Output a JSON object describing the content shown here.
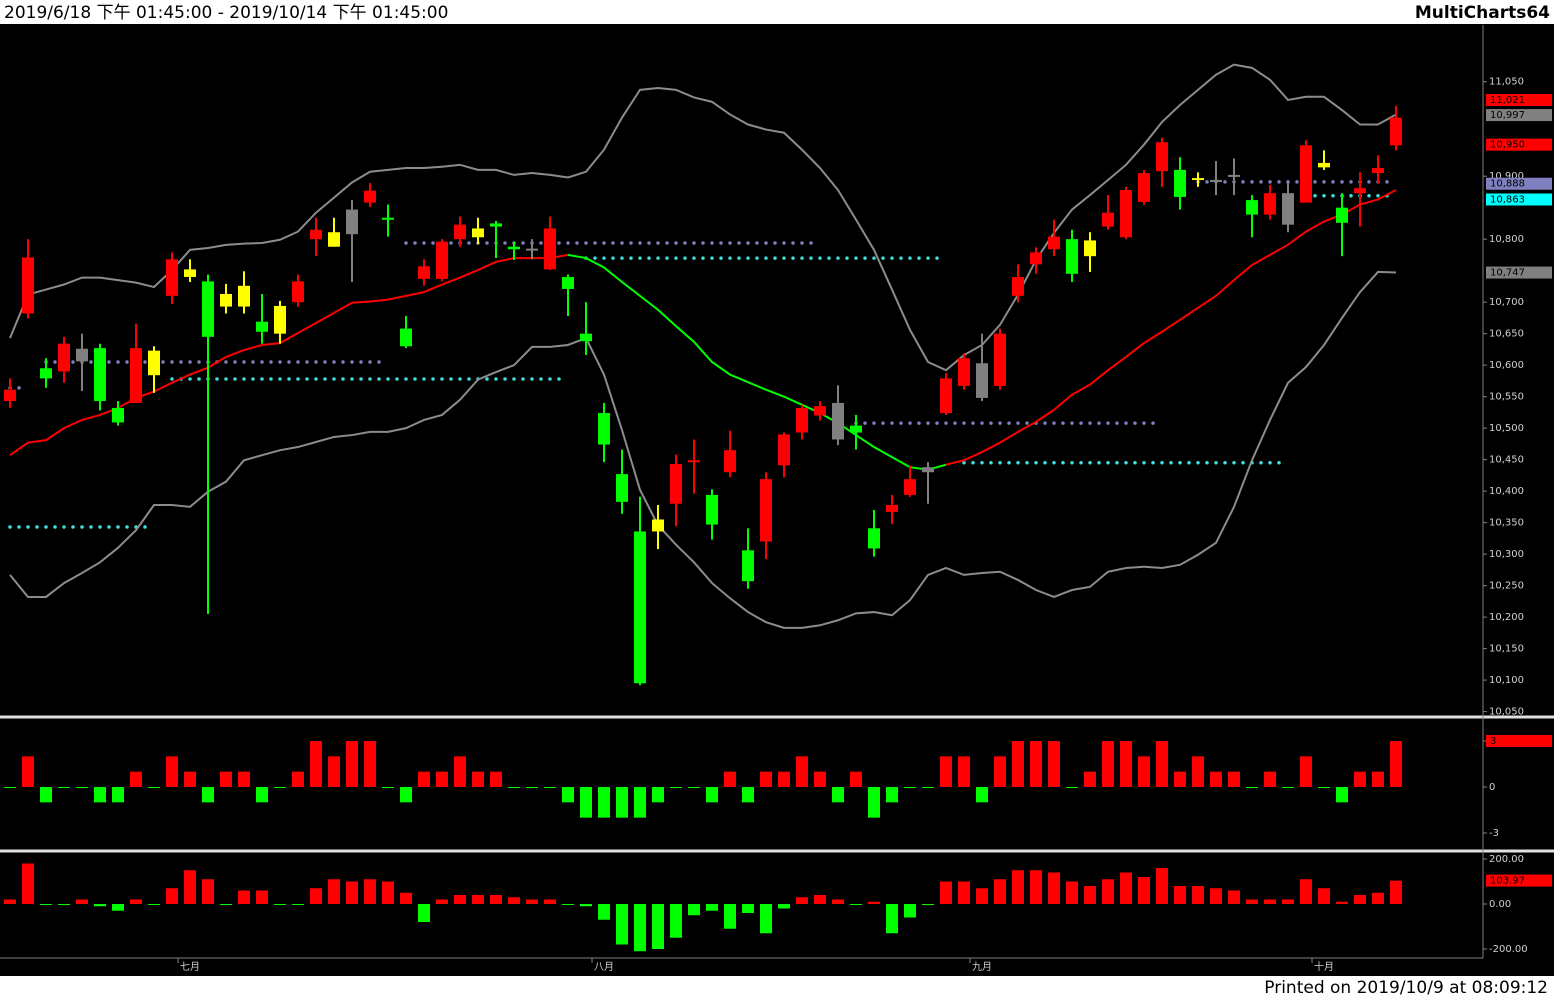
{
  "header": {
    "range": "2019/6/18 下午 01:45:00 - 2019/10/14 下午 01:45:00",
    "app": "MultiCharts64"
  },
  "footer": "Printed on 2019/10/9 at 08:09:12",
  "chart_data": [
    {
      "type": "candlestick",
      "categories": [
        null,
        null,
        null,
        null,
        null,
        null,
        null,
        null,
        null,
        null,
        "七月",
        null,
        null,
        null,
        null,
        null,
        null,
        null,
        null,
        null,
        null,
        null,
        null,
        null,
        null,
        null,
        null,
        null,
        null,
        null,
        null,
        null,
        null,
        "八月",
        null,
        null,
        null,
        null,
        null,
        null,
        null,
        null,
        null,
        null,
        null,
        null,
        null,
        null,
        null,
        null,
        null,
        null,
        null,
        null,
        "九月",
        null,
        null,
        null,
        null,
        null,
        null,
        null,
        null,
        null,
        null,
        null,
        null,
        null,
        null,
        null,
        null,
        null,
        null,
        "十月",
        null,
        null,
        null,
        null
      ],
      "open": [
        10543,
        10682,
        10595,
        10590,
        10606,
        10627,
        10532,
        10540,
        10584,
        10710,
        10740,
        10733,
        10693,
        10693,
        10669,
        10650,
        10700,
        10800,
        10788,
        10847,
        10858,
        10834,
        10658,
        10737,
        10737,
        10800,
        10803,
        10825,
        10788,
        10785,
        10752,
        10740,
        10650,
        10524,
        10427,
        10336,
        10336,
        10380,
        10446,
        10394,
        10430,
        10306,
        10320,
        10441,
        10493,
        10520,
        10540,
        10504,
        10341,
        10367,
        10394,
        10438,
        10524,
        10567,
        10603,
        10567,
        10710,
        10760,
        10784,
        10800,
        10773,
        10820,
        10803,
        10859,
        10908,
        10910,
        10894,
        10894,
        10902,
        10862,
        10839,
        10873,
        10858,
        10914,
        10850,
        10873,
        10905,
        10949
      ],
      "high": [
        10579,
        10800,
        10611,
        10645,
        10650,
        10634,
        10543,
        10666,
        10630,
        10779,
        10768,
        10744,
        10729,
        10749,
        10713,
        10702,
        10744,
        10834,
        10834,
        10862,
        10889,
        10855,
        10678,
        10768,
        10800,
        10836,
        10834,
        10829,
        10796,
        10800,
        10836,
        10744,
        10700,
        10540,
        10466,
        10391,
        10378,
        10458,
        10482,
        10403,
        10496,
        10341,
        10430,
        10493,
        10537,
        10543,
        10568,
        10521,
        10370,
        10394,
        10441,
        10446,
        10587,
        10619,
        10650,
        10658,
        10760,
        10787,
        10831,
        10815,
        10811,
        10870,
        10883,
        10910,
        10961,
        10930,
        10906,
        10924,
        10928,
        10870,
        10886,
        10889,
        10957,
        10941,
        10873,
        10906,
        10933,
        11012
      ],
      "low": [
        10532,
        10674,
        10564,
        10572,
        10559,
        10528,
        10504,
        10540,
        10556,
        10697,
        10732,
        10205,
        10682,
        10682,
        10634,
        10634,
        10693,
        10773,
        10788,
        10732,
        10851,
        10804,
        10627,
        10726,
        10733,
        10788,
        10792,
        10770,
        10767,
        10768,
        10751,
        10678,
        10616,
        10446,
        10364,
        10092,
        10308,
        10344,
        10396,
        10323,
        10422,
        10245,
        10292,
        10422,
        10482,
        10512,
        10473,
        10466,
        10296,
        10348,
        10391,
        10380,
        10521,
        10561,
        10543,
        10561,
        10700,
        10745,
        10773,
        10732,
        10748,
        10815,
        10800,
        10855,
        10883,
        10847,
        10883,
        10870,
        10870,
        10803,
        10831,
        10811,
        10858,
        10910,
        10773,
        10820,
        10889,
        10941
      ],
      "close": [
        10561,
        10771,
        10579,
        10634,
        10626,
        10543,
        10509,
        10627,
        10623,
        10768,
        10752,
        10645,
        10713,
        10726,
        10653,
        10694,
        10733,
        10815,
        10811,
        10808,
        10877,
        10831,
        10630,
        10757,
        10796,
        10823,
        10817,
        10820,
        10784,
        10784,
        10817,
        10721,
        10638,
        10474,
        10383,
        10095,
        10355,
        10443,
        10449,
        10347,
        10465,
        10257,
        10419,
        10490,
        10532,
        10535,
        10482,
        10493,
        10309,
        10378,
        10419,
        10430,
        10579,
        10611,
        10548,
        10650,
        10740,
        10779,
        10804,
        10745,
        10798,
        10842,
        10878,
        10905,
        10954,
        10867,
        10897,
        10891,
        10899,
        10839,
        10873,
        10823,
        10949,
        10921,
        10826,
        10881,
        10913,
        10993
      ],
      "colors": [
        "#ff0000",
        "#ff0000",
        "#00ff00",
        "#ff0000",
        "#808080",
        "#00ff00",
        "#00ff00",
        "#ff0000",
        "#ffff00",
        "#ff0000",
        "#ffff00",
        "#00ff00",
        "#ffff00",
        "#ffff00",
        "#00ff00",
        "#ffff00",
        "#ff0000",
        "#ff0000",
        "#ffff00",
        "#808080",
        "#ff0000",
        "#00ff00",
        "#00ff00",
        "#ff0000",
        "#ff0000",
        "#ff0000",
        "#ffff00",
        "#00ff00",
        "#00ff00",
        "#808080",
        "#ff0000",
        "#00ff00",
        "#00ff00",
        "#00ff00",
        "#00ff00",
        "#00ff00",
        "#ffff00",
        "#ff0000",
        "#ff0000",
        "#00ff00",
        "#ff0000",
        "#00ff00",
        "#ff0000",
        "#ff0000",
        "#ff0000",
        "#ff0000",
        "#808080",
        "#00ff00",
        "#00ff00",
        "#ff0000",
        "#ff0000",
        "#808080",
        "#ff0000",
        "#ff0000",
        "#808080",
        "#ff0000",
        "#ff0000",
        "#ff0000",
        "#ff0000",
        "#00ff00",
        "#ffff00",
        "#ff0000",
        "#ff0000",
        "#ff0000",
        "#ff0000",
        "#00ff00",
        "#ffff00",
        "#808080",
        "#808080",
        "#00ff00",
        "#ff0000",
        "#808080",
        "#ff0000",
        "#ffff00",
        "#00ff00",
        "#ff0000",
        "#ff0000",
        "#ff0000"
      ],
      "series": [
        {
          "color": "#8c8c8c",
          "values": [
            10643,
            10712,
            10720,
            10728,
            10739,
            10739,
            10735,
            10731,
            10724,
            10751,
            10783,
            10786,
            10791,
            10793,
            10794,
            10799,
            10812,
            10842,
            10866,
            10890,
            10907,
            10910,
            10913,
            10913,
            10915,
            10918,
            10910,
            10910,
            10902,
            10905,
            10902,
            10898,
            10907,
            10942,
            10993,
            11037,
            11040,
            11037,
            11025,
            11018,
            10998,
            10982,
            10974,
            10969,
            10942,
            10913,
            10878,
            10831,
            10783,
            10720,
            10656,
            10605,
            10592,
            10616,
            10632,
            10664,
            10712,
            10767,
            10810,
            10847,
            10870,
            10894,
            10918,
            10950,
            10986,
            11013,
            11037,
            11061,
            11077,
            11072,
            11053,
            11021,
            11026,
            11026,
            11005,
            10982,
            10982,
            10998
          ]
        },
        {
          "color": "#8c8c8c",
          "values": [
            10267,
            10232,
            10232,
            10254,
            10270,
            10287,
            10310,
            10338,
            10378,
            10378,
            10375,
            10399,
            10415,
            10449,
            10457,
            10465,
            10470,
            10478,
            10486,
            10489,
            10494,
            10494,
            10500,
            10513,
            10521,
            10545,
            10577,
            10589,
            10600,
            10629,
            10629,
            10632,
            10643,
            10585,
            10497,
            10402,
            10346,
            10315,
            10287,
            10254,
            10230,
            10208,
            10192,
            10183,
            10183,
            10187,
            10195,
            10206,
            10208,
            10203,
            10227,
            10267,
            10278,
            10267,
            10270,
            10272,
            10259,
            10243,
            10232,
            10243,
            10248,
            10272,
            10278,
            10280,
            10278,
            10283,
            10299,
            10318,
            10375,
            10449,
            10513,
            10572,
            10597,
            10632,
            10675,
            10716,
            10748,
            10747
          ]
        },
        {
          "color": "#ff0000",
          "values": [
            10457,
            10477,
            10481,
            10500,
            10513,
            10521,
            10532,
            10548,
            10558,
            10572,
            10585,
            10596,
            10613,
            10624,
            10632,
            10635,
            10651,
            10667,
            10683,
            10699,
            10701,
            10704,
            10710,
            10716,
            10728,
            10739,
            10751,
            10764,
            10770,
            10770,
            10770,
            10775,
            null,
            null,
            null,
            null,
            null,
            null,
            null,
            null,
            null,
            null,
            null,
            null,
            null,
            null,
            null,
            null,
            null,
            null,
            null,
            null,
            10442,
            10449,
            10462,
            10477,
            10494,
            10510,
            10529,
            10553,
            10569,
            10592,
            10613,
            10635,
            10653,
            10672,
            10691,
            10710,
            10735,
            10759,
            10775,
            10791,
            10812,
            10828,
            10839,
            10855,
            10863,
            10878
          ]
        },
        {
          "color": "#00ff00",
          "values": [
            null,
            null,
            null,
            null,
            null,
            null,
            null,
            null,
            null,
            null,
            null,
            null,
            null,
            null,
            null,
            null,
            null,
            null,
            null,
            null,
            null,
            null,
            null,
            null,
            null,
            null,
            null,
            null,
            null,
            null,
            null,
            10775,
            10770,
            10755,
            10732,
            10710,
            10688,
            10662,
            10637,
            10605,
            10585,
            10573,
            10561,
            10550,
            10537,
            10524,
            10508,
            10489,
            10470,
            10454,
            10438,
            10434,
            10442,
            null,
            null,
            null,
            null,
            null,
            null,
            null,
            null,
            null,
            null,
            null,
            null,
            null,
            null,
            null,
            null,
            null,
            null,
            null,
            null,
            null,
            null,
            null,
            null,
            null
          ]
        }
      ],
      "levels": [
        {
          "value": 10564,
          "start": 0,
          "end": 1,
          "color": "#8080c0"
        },
        {
          "value": 10605,
          "start": 2,
          "end": 21,
          "color": "#8080c0"
        },
        {
          "value": 10343,
          "start": 0,
          "end": 8,
          "color": "#40e0e0"
        },
        {
          "value": 10578,
          "start": 9,
          "end": 31,
          "color": "#40e0e0"
        },
        {
          "value": 10794,
          "start": 22,
          "end": 45,
          "color": "#8080c0"
        },
        {
          "value": 10770,
          "start": 32,
          "end": 52,
          "color": "#40e0e0"
        },
        {
          "value": 10508,
          "start": 47,
          "end": 64,
          "color": "#8080c0"
        },
        {
          "value": 10445,
          "start": 53,
          "end": 71,
          "color": "#40e0e0"
        },
        {
          "value": 10891,
          "start": 66,
          "end": 77,
          "color": "#8080c0"
        },
        {
          "value": 10869,
          "start": 72,
          "end": 77,
          "color": "#40e0e0"
        }
      ],
      "ylim": [
        10043,
        11140
      ],
      "yticks": [
        {
          "value": 10050,
          "label": "10,050"
        },
        {
          "value": 10100,
          "label": "10,100"
        },
        {
          "value": 10150,
          "label": "10,150"
        },
        {
          "value": 10200,
          "label": "10,200"
        },
        {
          "value": 10250,
          "label": "10,250"
        },
        {
          "value": 10300,
          "label": "10,300"
        },
        {
          "value": 10350,
          "label": "10,350"
        },
        {
          "value": 10400,
          "label": "10,400"
        },
        {
          "value": 10450,
          "label": "10,450"
        },
        {
          "value": 10500,
          "label": "10,500"
        },
        {
          "value": 10550,
          "label": "10,550"
        },
        {
          "value": 10600,
          "label": "10,600"
        },
        {
          "value": 10650,
          "label": "10,650"
        },
        {
          "value": 10700,
          "label": "10,700"
        },
        {
          "value": 10800,
          "label": "10,800"
        },
        {
          "value": 10900,
          "label": "10,900"
        },
        {
          "value": 11050,
          "label": "11,050"
        }
      ],
      "markers": [
        {
          "value": 11021,
          "label": "11,021",
          "color": "#ff0000"
        },
        {
          "value": 10997,
          "label": "10,997",
          "color": "#808080"
        },
        {
          "value": 10950,
          "label": "10,950",
          "color": "#ff0000"
        },
        {
          "value": 10888,
          "label": "10,888",
          "color": "#8080c0"
        },
        {
          "value": 10863,
          "label": "10,863",
          "color": "#00ffff"
        },
        {
          "value": 10747,
          "label": "10,747",
          "color": "#808080"
        }
      ]
    },
    {
      "type": "bar",
      "up_color": "#ff0000",
      "down_color": "#00ff00",
      "values": [
        0,
        2,
        -1,
        0,
        0,
        -1,
        -1,
        1,
        0,
        2,
        1,
        -1,
        1,
        1,
        -1,
        0,
        1,
        3,
        2,
        3,
        3,
        0,
        -1,
        1,
        1,
        2,
        1,
        1,
        0,
        0,
        0,
        -1,
        -2,
        -2,
        -2,
        -2,
        -1,
        0,
        0,
        -1,
        1,
        -1,
        1,
        1,
        2,
        1,
        -1,
        1,
        -2,
        -1,
        0,
        0,
        2,
        2,
        -1,
        2,
        3,
        3,
        3,
        0,
        1,
        3,
        3,
        2,
        3,
        1,
        2,
        1,
        1,
        0,
        1,
        0,
        2,
        0,
        -1,
        1,
        1,
        3
      ],
      "ylim": [
        -3.98,
        4.37
      ],
      "yticks": [
        -3,
        0,
        3
      ],
      "markers": [
        {
          "value": 3,
          "color": "#ff0000"
        }
      ]
    },
    {
      "type": "bar",
      "up_color": "#ff0000",
      "down_color": "#00ff00",
      "values": [
        20,
        180,
        0,
        0,
        20,
        -10,
        -30,
        20,
        0,
        70,
        150,
        110,
        0,
        60,
        60,
        0,
        0,
        70,
        110,
        100,
        110,
        100,
        50,
        -80,
        20,
        40,
        40,
        40,
        30,
        20,
        20,
        0,
        -10,
        -70,
        -180,
        -210,
        -200,
        -150,
        -50,
        -30,
        -110,
        -40,
        -130,
        -20,
        30,
        40,
        20,
        0,
        10,
        -130,
        -60,
        0,
        100,
        100,
        70,
        110,
        150,
        150,
        140,
        100,
        80,
        110,
        140,
        120,
        160,
        80,
        80,
        70,
        60,
        20,
        20,
        20,
        110,
        70,
        10,
        40,
        50,
        103.97
      ],
      "ylim": [
        -240,
        231
      ],
      "yticks": [
        {
          "value": -200,
          "label": "-200.00"
        },
        {
          "value": 0,
          "label": "0.00"
        },
        {
          "value": 200,
          "label": "200.00"
        }
      ],
      "markers": [
        {
          "value": 103.97,
          "color": "#ff0000"
        }
      ]
    }
  ]
}
